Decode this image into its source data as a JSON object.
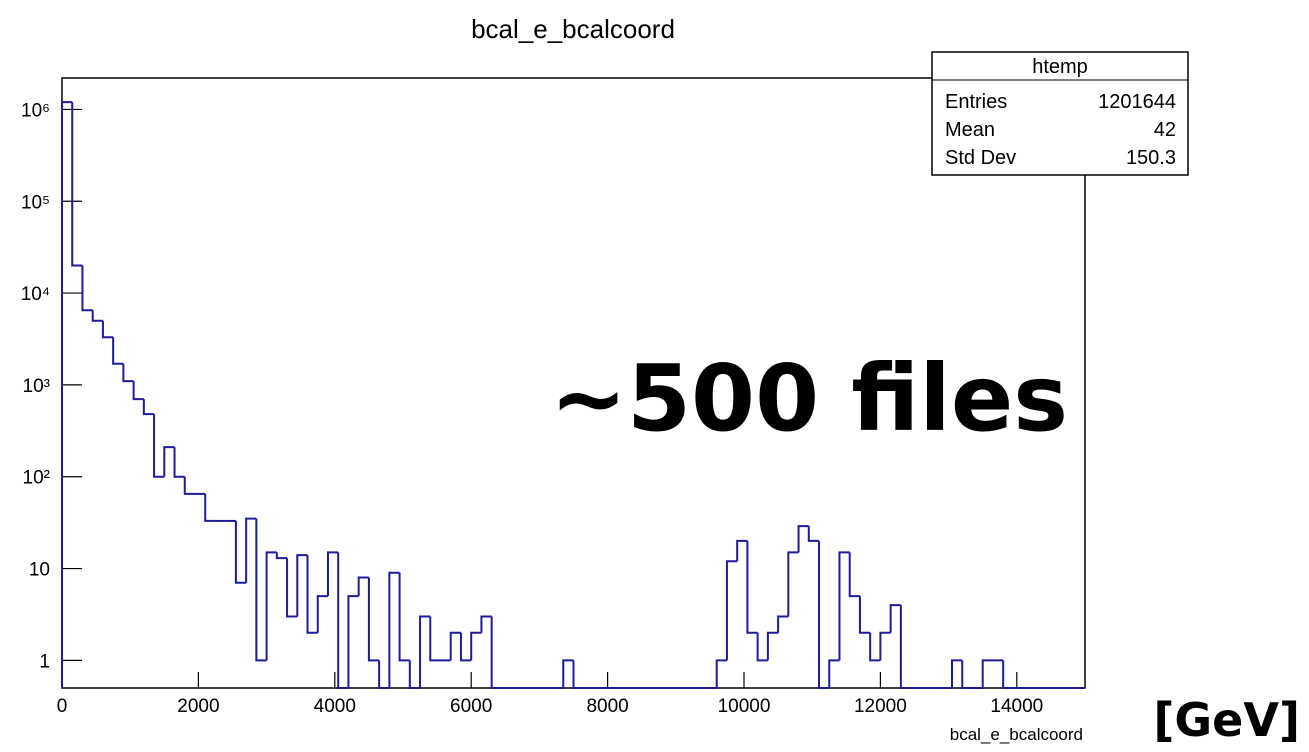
{
  "chart_data": {
    "type": "histogram",
    "title": "bcal_e_bcalcoord",
    "x_label": "bcal_e_bcalcoord",
    "color": "#1c1c9c",
    "log_y": true,
    "bins": [
      0,
      150,
      300,
      450,
      600,
      750,
      900,
      1050,
      1200,
      1350,
      1500,
      1650,
      1800,
      1950,
      2100,
      2250,
      2400,
      2550,
      2700,
      2850,
      3000,
      3150,
      3300,
      3450,
      3600,
      3750,
      3900,
      4050,
      4200,
      4350,
      4500,
      4650,
      4800,
      4950,
      5100,
      5250,
      5400,
      5550,
      5700,
      5850,
      6000,
      6150,
      6300,
      6450,
      6600,
      6750,
      6900,
      7050,
      7200,
      7350,
      7500,
      7650,
      7800,
      7950,
      8100,
      8250,
      8400,
      8550,
      8700,
      8850,
      9000,
      9150,
      9300,
      9450,
      9600,
      9750,
      9900,
      10050,
      10200,
      10350,
      10500,
      10650,
      10800,
      10950,
      11100,
      11250,
      11400,
      11550,
      11700,
      11850,
      12000,
      12150,
      12300,
      12450,
      12600,
      12750,
      12900,
      13050,
      13200,
      13350,
      13500,
      13650,
      13800,
      13950,
      14100,
      14250,
      14400,
      14550,
      14700,
      14850,
      15000
    ],
    "values": [
      1200000,
      20000,
      6500,
      5000,
      3300,
      1700,
      1100,
      700,
      480,
      100,
      210,
      100,
      65,
      65,
      33,
      33,
      33,
      7,
      35,
      1,
      15,
      13,
      3,
      14,
      2,
      5,
      15,
      0,
      5,
      8,
      1,
      0,
      9,
      1,
      0,
      3,
      1,
      1,
      2,
      1,
      2,
      3,
      0,
      0,
      0,
      0,
      0,
      0,
      0,
      1,
      0,
      0,
      0,
      0,
      0,
      0,
      0,
      0,
      0,
      0,
      0,
      0,
      0,
      0,
      1,
      12,
      20,
      2,
      1,
      2,
      3,
      15,
      29,
      20,
      0,
      1,
      15,
      5,
      2,
      1,
      2,
      4,
      0,
      0,
      0,
      0,
      0,
      1,
      0,
      0,
      1,
      1,
      0,
      0,
      0,
      0,
      0,
      0,
      0,
      0
    ],
    "xlim": [
      0,
      15000
    ],
    "xticks": [
      0,
      2000,
      4000,
      6000,
      8000,
      10000,
      12000,
      14000
    ],
    "ylim": [
      0.5,
      2200000
    ],
    "yticks": [
      1,
      10,
      {
        "value": 100,
        "label": "10²"
      },
      {
        "value": 1000,
        "label": "10³"
      },
      {
        "value": 10000,
        "label": "10⁴"
      },
      {
        "value": 100000,
        "label": "10⁵"
      },
      {
        "value": 1000000,
        "label": "10⁶"
      }
    ],
    "stats": {
      "title": "htemp",
      "rows": [
        {
          "label": "Entries",
          "value": 1201644
        },
        {
          "label": "Mean",
          "value": 42
        },
        {
          "label": "Std Dev",
          "value": 150.3
        }
      ]
    },
    "annotations": [
      "~500 files",
      "[GeV]"
    ]
  }
}
